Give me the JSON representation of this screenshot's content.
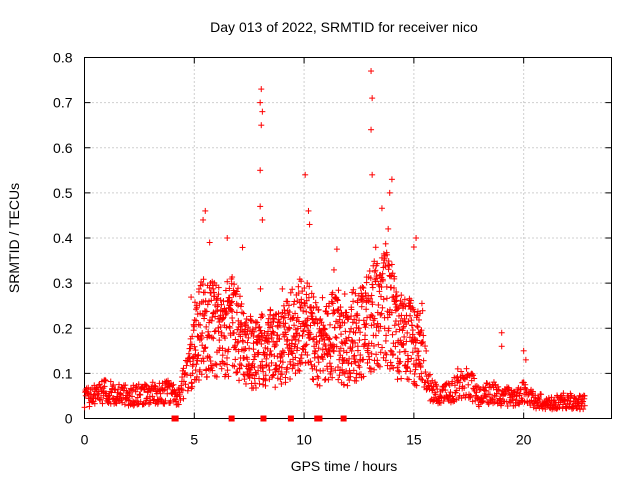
{
  "chart_data": {
    "type": "scatter",
    "title": "Day 013 of 2022, SRMTID for receiver nico",
    "xlabel": "GPS time / hours",
    "ylabel": "SRMTID / TECUs",
    "xlim": [
      0,
      24
    ],
    "ylim": [
      0,
      0.8
    ],
    "xticks": [
      0,
      5,
      10,
      15,
      20
    ],
    "yticks": [
      0,
      0.1,
      0.2,
      0.3,
      0.4,
      0.5,
      0.6,
      0.7,
      0.8
    ],
    "xtick_labels": [
      "0",
      "5",
      "10",
      "15",
      "20"
    ],
    "ytick_labels": [
      "0",
      "0.1",
      "0.2",
      "0.3",
      "0.4",
      "0.5",
      "0.6",
      "0.7",
      "0.8"
    ],
    "grid": true,
    "marker": "+",
    "color": "#ff0000",
    "series": [
      {
        "name": "SRMTID",
        "profile_x": [
          0,
          1,
          2,
          3,
          3.8,
          4.3,
          4.8,
          5.3,
          5.8,
          6.3,
          6.8,
          7.3,
          7.8,
          8.3,
          8.8,
          9.3,
          9.8,
          10.3,
          10.8,
          11.3,
          11.8,
          12.3,
          12.8,
          13.3,
          13.8,
          14.3,
          14.8,
          15.3,
          15.8,
          16.3,
          17,
          17.5,
          18,
          18.5,
          19,
          19.5,
          20,
          20.5,
          21,
          22,
          22.8
        ],
        "profile_y": [
          0.045,
          0.06,
          0.05,
          0.055,
          0.06,
          0.05,
          0.12,
          0.2,
          0.2,
          0.19,
          0.21,
          0.16,
          0.14,
          0.16,
          0.15,
          0.18,
          0.2,
          0.2,
          0.14,
          0.19,
          0.15,
          0.18,
          0.2,
          0.25,
          0.25,
          0.18,
          0.18,
          0.15,
          0.06,
          0.05,
          0.07,
          0.08,
          0.045,
          0.06,
          0.05,
          0.05,
          0.06,
          0.04,
          0.035,
          0.04,
          0.035
        ],
        "spikes": [
          {
            "x": 8.05,
            "y": 0.73
          },
          {
            "x": 8.0,
            "y": 0.7
          },
          {
            "x": 8.1,
            "y": 0.68
          },
          {
            "x": 8.05,
            "y": 0.65
          },
          {
            "x": 8.0,
            "y": 0.55
          },
          {
            "x": 8.0,
            "y": 0.47
          },
          {
            "x": 8.1,
            "y": 0.44
          },
          {
            "x": 10.05,
            "y": 0.54
          },
          {
            "x": 10.2,
            "y": 0.46
          },
          {
            "x": 10.25,
            "y": 0.43
          },
          {
            "x": 13.05,
            "y": 0.77
          },
          {
            "x": 13.1,
            "y": 0.71
          },
          {
            "x": 13.05,
            "y": 0.64
          },
          {
            "x": 13.1,
            "y": 0.54
          },
          {
            "x": 14.0,
            "y": 0.53
          },
          {
            "x": 13.9,
            "y": 0.5
          },
          {
            "x": 5.5,
            "y": 0.46
          },
          {
            "x": 5.4,
            "y": 0.44
          },
          {
            "x": 5.7,
            "y": 0.39
          },
          {
            "x": 6.5,
            "y": 0.4
          },
          {
            "x": 15.1,
            "y": 0.4
          },
          {
            "x": 15.0,
            "y": 0.38
          },
          {
            "x": 19.0,
            "y": 0.19
          },
          {
            "x": 19.0,
            "y": 0.16
          },
          {
            "x": 20.0,
            "y": 0.15
          },
          {
            "x": 20.1,
            "y": 0.13
          },
          {
            "x": 17.0,
            "y": 0.11
          }
        ],
        "gaps": [
          4.1,
          4.15,
          6.7,
          8.15,
          9.4,
          10.6,
          10.7,
          11.8
        ]
      }
    ]
  }
}
